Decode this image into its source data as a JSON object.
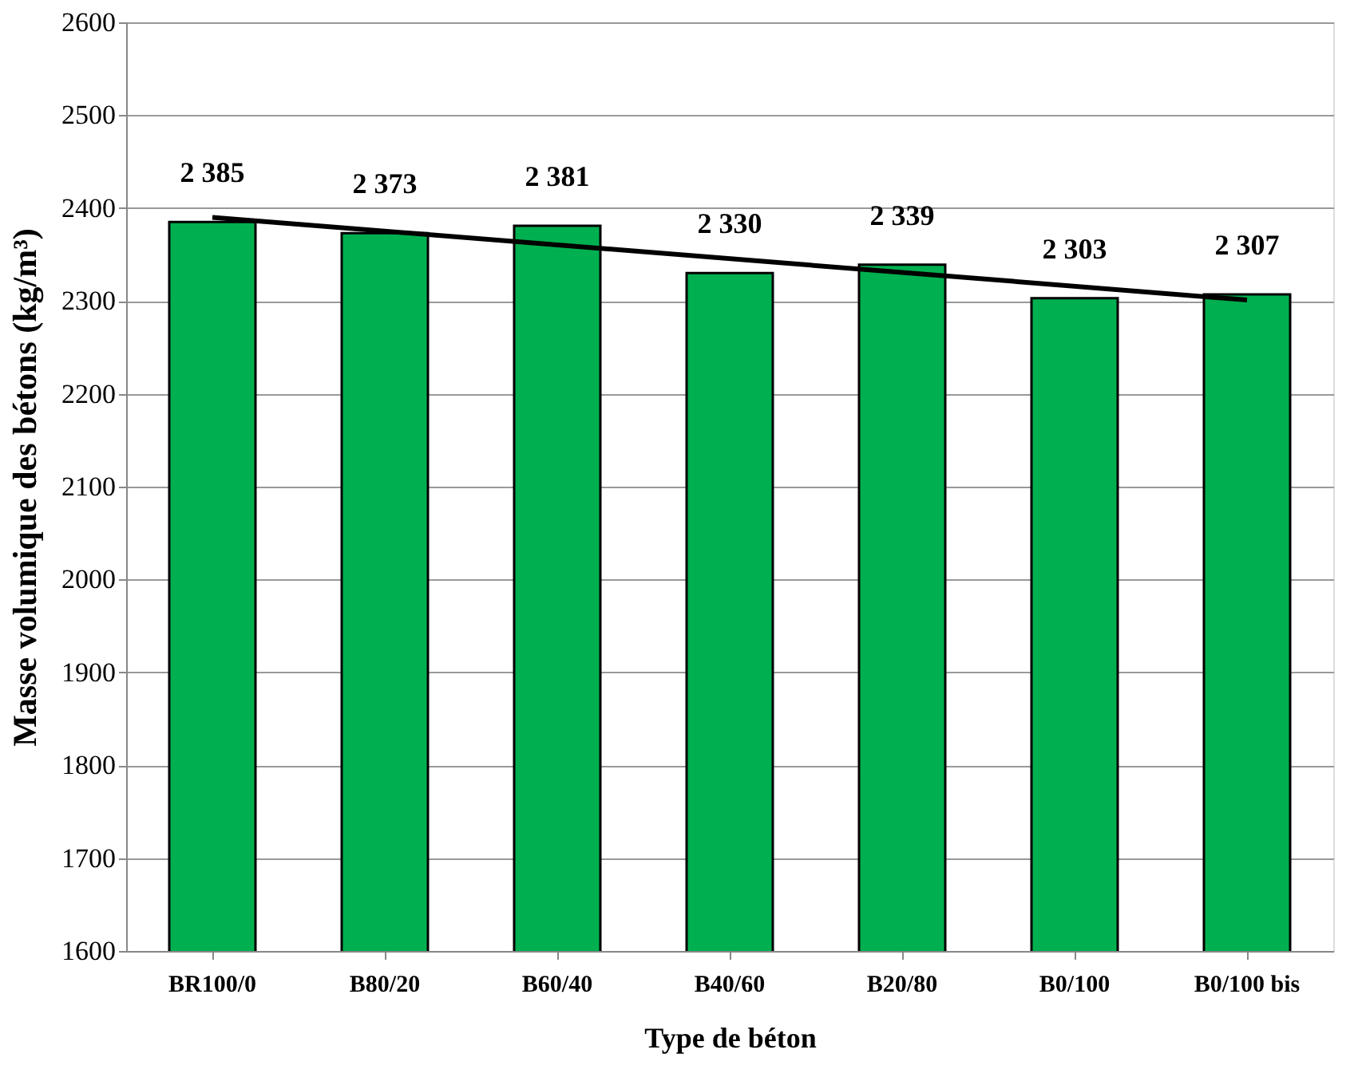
{
  "chart_data": {
    "type": "bar",
    "xlabel": "Type de béton",
    "ylabel": "Masse volumique des bétons (kg/m³)",
    "categories": [
      "BR100/0",
      "B80/20",
      "B60/40",
      "B40/60",
      "B20/80",
      "B0/100",
      "B0/100 bis"
    ],
    "series": [
      {
        "color": "#00b050",
        "values": [
          2385,
          2373,
          2381,
          2330,
          2339,
          2303,
          2307
        ],
        "value_labels": [
          "2 385",
          "2 373",
          "2 381",
          "2 330",
          "2 339",
          "2 303",
          "2 307"
        ]
      },
      {
        "type": "line",
        "color": "#000000",
        "x": [
          "BR100/0",
          "B0/100 bis"
        ],
        "values": [
          2390,
          2301
        ]
      }
    ],
    "ylim": [
      1600,
      2600
    ],
    "yticks": [
      1600,
      1700,
      1800,
      1900,
      2000,
      2100,
      2200,
      2300,
      2400,
      2500,
      2600
    ],
    "grid": "y"
  }
}
